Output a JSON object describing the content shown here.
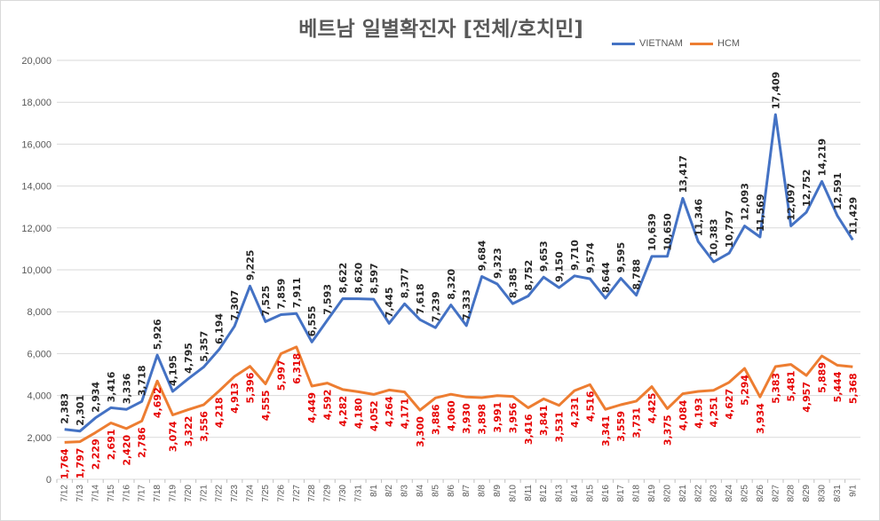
{
  "chart_data": {
    "type": "line",
    "title": "베트남  일별확진자 [전체/호치민]",
    "xlabel": "",
    "ylabel": "",
    "ylim": [
      0,
      20000
    ],
    "yticks": [
      "0",
      "2,000",
      "4,000",
      "6,000",
      "8,000",
      "10,000",
      "12,000",
      "14,000",
      "16,000",
      "18,000",
      "20,000"
    ],
    "grid": true,
    "legend_position": "top-right",
    "categories": [
      "7/12",
      "7/13",
      "7/14",
      "7/15",
      "7/16",
      "7/17",
      "7/18",
      "7/19",
      "7/20",
      "7/21",
      "7/22",
      "7/23",
      "7/24",
      "7/25",
      "7/26",
      "7/27",
      "7/28",
      "7/29",
      "7/30",
      "7/31",
      "8/1",
      "8/2",
      "8/3",
      "8/4",
      "8/5",
      "8/6",
      "8/7",
      "8/8",
      "8/9",
      "8/10",
      "8/11",
      "8/12",
      "8/13",
      "8/14",
      "8/15",
      "8/16",
      "8/17",
      "8/18",
      "8/19",
      "8/20",
      "8/21",
      "8/22",
      "8/23",
      "8/24",
      "8/25",
      "8/26",
      "8/27",
      "8/28",
      "8/29",
      "8/30",
      "8/31",
      "9/1"
    ],
    "series": [
      {
        "name": "VIETNAM",
        "color": "#4472c4",
        "values": [
          2383,
          2301,
          2934,
          3416,
          3336,
          3718,
          5926,
          4195,
          4795,
          5357,
          6194,
          7307,
          9225,
          7525,
          7859,
          7911,
          6555,
          7593,
          8622,
          8620,
          8597,
          7445,
          8377,
          7618,
          7239,
          8320,
          7333,
          9684,
          9323,
          8385,
          8752,
          9653,
          9150,
          9710,
          9574,
          8644,
          9595,
          8788,
          10639,
          10650,
          13417,
          11346,
          10383,
          10797,
          12093,
          11569,
          17409,
          12097,
          12752,
          14219,
          12591,
          11429
        ],
        "labels": [
          "2,383",
          "2,301",
          "2,934",
          "3,416",
          "3,336",
          "3,718",
          "5,926",
          "4,195",
          "4,795",
          "5,357",
          "6,194",
          "7,307",
          "9,225",
          "7,525",
          "7,859",
          "7,911",
          "6,555",
          "7,593",
          "8,622",
          "8,620",
          "8,597",
          "7,445",
          "8,377",
          "7,618",
          "7,239",
          "8,320",
          "7,333",
          "9,684",
          "9,323",
          "8,385",
          "8,752",
          "9,653",
          "9,150",
          "9,710",
          "9,574",
          "8,644",
          "9,595",
          "8,788",
          "10,639",
          "10,650",
          "13,417",
          "11,346",
          "10,383",
          "10,797",
          "12,093",
          "11,569",
          "17,409",
          "12,097",
          "12,752",
          "14,219",
          "12,591",
          "11,429"
        ]
      },
      {
        "name": "HCM",
        "color": "#ed7d31",
        "values": [
          1764,
          1797,
          2229,
          2691,
          2420,
          2786,
          4692,
          3074,
          3322,
          3556,
          4218,
          4913,
          5396,
          4555,
          5997,
          6318,
          4449,
          4592,
          4282,
          4180,
          4052,
          4264,
          4171,
          3300,
          3886,
          4060,
          3930,
          3898,
          3991,
          3956,
          3416,
          3841,
          3531,
          4231,
          4516,
          3341,
          3559,
          3731,
          4425,
          3375,
          4084,
          4193,
          4251,
          4627,
          5294,
          3934,
          5383,
          5481,
          4957,
          5889,
          5444,
          5368
        ],
        "labels": [
          "1,764",
          "1,797",
          "2,229",
          "2,691",
          "2,420",
          "2,786",
          "4,692",
          "3,074",
          "3,322",
          "3,556",
          "4,218",
          "4,913",
          "5,396",
          "4,555",
          "5,997",
          "6,318",
          "4,449",
          "4,592",
          "4,282",
          "4,180",
          "4,052",
          "4,264",
          "4,171",
          "3,300",
          "3,886",
          "4,060",
          "3,930",
          "3,898",
          "3,991",
          "3,956",
          "3,416",
          "3,841",
          "3,531",
          "4,231",
          "4,516",
          "3,341",
          "3,559",
          "3,731",
          "4,425",
          "3,375",
          "4,084",
          "4,193",
          "4,251",
          "4,627",
          "5,294",
          "3,934",
          "5,383",
          "5,481",
          "4,957",
          "5,889",
          "5,444",
          "5,368"
        ]
      }
    ]
  },
  "colors": {
    "vietnam": "#4472c4",
    "hcm": "#ed7d31",
    "hcm_label": "#e60000",
    "grid": "#d9d9d9"
  }
}
